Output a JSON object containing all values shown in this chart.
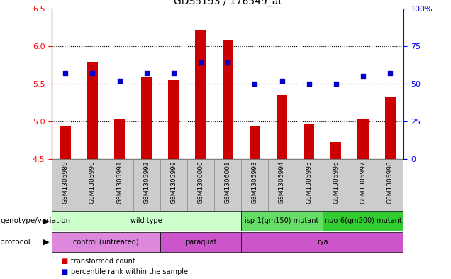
{
  "title": "GDS5193 / 176549_at",
  "samples": [
    "GSM1305989",
    "GSM1305990",
    "GSM1305991",
    "GSM1305992",
    "GSM1305999",
    "GSM1306000",
    "GSM1306001",
    "GSM1305993",
    "GSM1305994",
    "GSM1305995",
    "GSM1305996",
    "GSM1305997",
    "GSM1305998"
  ],
  "bar_values": [
    4.93,
    5.78,
    5.04,
    5.58,
    5.56,
    6.22,
    6.07,
    4.93,
    5.35,
    4.97,
    4.73,
    5.04,
    5.32
  ],
  "dot_values": [
    57,
    57,
    52,
    57,
    57,
    64,
    64,
    50,
    52,
    50,
    50,
    55,
    57
  ],
  "bar_bottom": 4.5,
  "ylim_left": [
    4.5,
    6.5
  ],
  "ylim_right": [
    0,
    100
  ],
  "yticks_left": [
    4.5,
    5.0,
    5.5,
    6.0,
    6.5
  ],
  "yticks_right": [
    0,
    25,
    50,
    75,
    100
  ],
  "hlines": [
    5.0,
    5.5,
    6.0
  ],
  "bar_color": "#cc0000",
  "dot_color": "#0000cc",
  "genotype_groups": [
    {
      "label": "wild type",
      "start": 0,
      "end": 7,
      "color": "#ccffcc"
    },
    {
      "label": "isp-1(qm150) mutant",
      "start": 7,
      "end": 10,
      "color": "#66dd66"
    },
    {
      "label": "nuo-6(qm200) mutant",
      "start": 10,
      "end": 13,
      "color": "#33cc33"
    }
  ],
  "protocol_groups": [
    {
      "label": "control (untreated)",
      "start": 0,
      "end": 4,
      "color": "#dd88dd"
    },
    {
      "label": "paraquat",
      "start": 4,
      "end": 7,
      "color": "#cc55cc"
    },
    {
      "label": "n/a",
      "start": 7,
      "end": 13,
      "color": "#cc55cc"
    }
  ],
  "bar_color_legend": "#cc0000",
  "dot_color_legend": "#0000cc",
  "legend_label_bar": "transformed count",
  "legend_label_dot": "percentile rank within the sample",
  "label_genotype": "genotype/variation",
  "label_protocol": "protocol",
  "xlim": [
    -0.5,
    12.5
  ],
  "bar_width": 0.4,
  "dot_size": 20
}
